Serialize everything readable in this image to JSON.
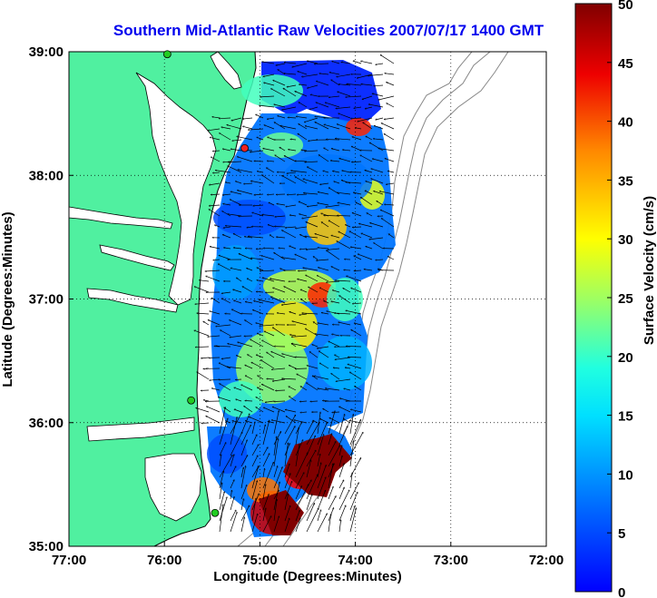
{
  "title": "Southern Mid-Atlantic Raw Velocities 2007/07/17 1400 GMT",
  "x_axis": {
    "label": "Longitude (Degrees:Minutes)",
    "ticks": [
      "77:00",
      "76:00",
      "75:00",
      "74:00",
      "73:00",
      "72:00"
    ],
    "values": [
      -77,
      -76,
      -75,
      -74,
      -73,
      -72
    ]
  },
  "y_axis": {
    "label": "Latitude (Degrees:Minutes)",
    "ticks": [
      "35:00",
      "36:00",
      "37:00",
      "38:00",
      "39:00"
    ],
    "values": [
      35,
      36,
      37,
      38,
      39
    ]
  },
  "colorbar": {
    "label": "Surface Velocity (cm/s)",
    "ticks": [
      "0",
      "5",
      "10",
      "15",
      "20",
      "25",
      "30",
      "35",
      "40",
      "45",
      "50"
    ],
    "range": [
      0,
      50
    ],
    "colormap": "jet"
  },
  "colors": {
    "land": "#50f0a0",
    "coastline": "#000000",
    "bathymetry": "#888888",
    "title": "#0000ee",
    "station_active": "#22cc22",
    "station_inactive": "#ee2222"
  },
  "stations": [
    {
      "status": "active",
      "lon": -75.97,
      "lat": 38.98
    },
    {
      "status": "inactive",
      "lon": -75.16,
      "lat": 38.22
    },
    {
      "status": "active",
      "lon": -75.72,
      "lat": 36.18
    },
    {
      "status": "active",
      "lon": -75.47,
      "lat": 35.27
    }
  ]
}
